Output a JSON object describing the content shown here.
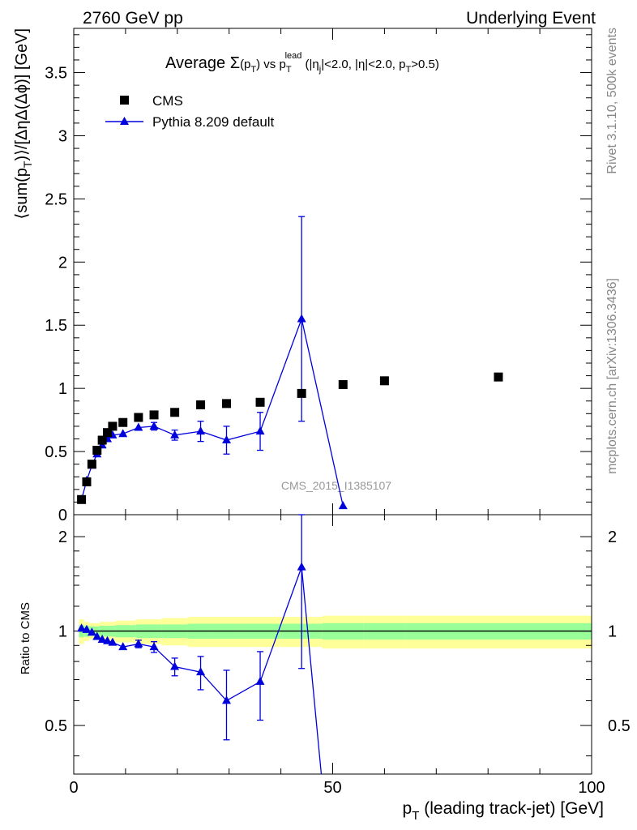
{
  "header": {
    "left": "2760 GeV pp",
    "right": "Underlying Event"
  },
  "side_labels": {
    "rivet": "Rivet 3.1.10,  500k events",
    "mcplots": "mcplots.cern.ch [arXiv:1306.3436]"
  },
  "watermark": "CMS_2015_I1385107",
  "colors": {
    "mc": "#0000dd",
    "data": "#000000",
    "band_inner": "#99ff99",
    "band_outer": "#ffff99"
  },
  "chart_data": [
    {
      "type": "scatter",
      "title_parts": {
        "t1": "Average ",
        "t2": "Σ",
        "t3": "(p",
        "t4": "T",
        "t5": ") vs p",
        "t6": "T",
        "t7": "lead",
        "t8": " (|η",
        "t9": "j",
        "t10": "|<2.0, |η|<2.0, p",
        "t11": "T",
        "t12": ">0.5)"
      },
      "ylabel_parts": {
        "a": "⟨sum(p",
        "b": "T",
        "c": ")⟩/[ΔηΔ(Δϕ)] [GeV]"
      },
      "xlim": [
        0,
        100
      ],
      "ylim": [
        0,
        3.85
      ],
      "yticks": [
        {
          "v": 0,
          "label": "0"
        },
        {
          "v": 0.5,
          "label": "0.5"
        },
        {
          "v": 1,
          "label": "1"
        },
        {
          "v": 1.5,
          "label": "1.5"
        },
        {
          "v": 2,
          "label": "2"
        },
        {
          "v": 2.5,
          "label": "2.5"
        },
        {
          "v": 3,
          "label": "3"
        },
        {
          "v": 3.5,
          "label": "3.5"
        }
      ],
      "legend": {
        "position": "top-left",
        "entries": [
          {
            "label": "CMS",
            "marker": "square"
          },
          {
            "label": "Pythia 8.209 default",
            "marker": "triangle"
          }
        ]
      },
      "series": [
        {
          "name": "CMS",
          "x": [
            1.5,
            2.5,
            3.5,
            4.5,
            5.5,
            6.5,
            7.5,
            9.5,
            12.5,
            15.5,
            19.5,
            24.5,
            29.5,
            36,
            44,
            52,
            60,
            82
          ],
          "y": [
            0.12,
            0.26,
            0.4,
            0.51,
            0.59,
            0.65,
            0.7,
            0.73,
            0.77,
            0.79,
            0.81,
            0.87,
            0.88,
            0.89,
            0.96,
            1.03,
            1.06,
            1.09
          ]
        },
        {
          "name": "Pythia 8.209 default",
          "x": [
            1.5,
            2.5,
            3.5,
            4.5,
            5.5,
            6.5,
            7.5,
            9.5,
            12.5,
            15.5,
            19.5,
            24.5,
            29.5,
            36,
            44,
            52
          ],
          "y": [
            0.12,
            0.27,
            0.39,
            0.48,
            0.55,
            0.6,
            0.63,
            0.64,
            0.69,
            0.7,
            0.63,
            0.66,
            0.59,
            0.66,
            1.55,
            0.07
          ],
          "err": [
            0.005,
            0.005,
            0.01,
            0.01,
            0.01,
            0.01,
            0.015,
            0.02,
            0.02,
            0.03,
            0.04,
            0.08,
            0.11,
            0.15,
            0.81,
            0.0
          ]
        }
      ]
    },
    {
      "type": "scatter",
      "ylabel": "Ratio to CMS",
      "xlabel_parts": {
        "a": "p",
        "b": "T",
        "c": " (leading track-jet) [GeV]"
      },
      "xlim": [
        0,
        100
      ],
      "ylim": [
        0.35,
        2.35
      ],
      "xticks": [
        {
          "v": 0,
          "label": "0"
        },
        {
          "v": 50,
          "label": "50"
        },
        {
          "v": 100,
          "label": "100"
        }
      ],
      "yticks": [
        {
          "v": 0.5,
          "label": "0.5"
        },
        {
          "v": 1,
          "label": "1"
        },
        {
          "v": 2,
          "label": "2"
        }
      ],
      "reference_line": 1,
      "band_edges": [
        1,
        2,
        3,
        5,
        8,
        12,
        17,
        22,
        27,
        32,
        40,
        48,
        56,
        64,
        100
      ],
      "band_inner": [
        0.045,
        0.04,
        0.035,
        0.04,
        0.045,
        0.05,
        0.05,
        0.055,
        0.055,
        0.055,
        0.055,
        0.06,
        0.06,
        0.06
      ],
      "band_outer": [
        0.09,
        0.07,
        0.06,
        0.07,
        0.08,
        0.09,
        0.1,
        0.11,
        0.11,
        0.11,
        0.11,
        0.12,
        0.12,
        0.12
      ],
      "series": [
        {
          "name": "Pythia 8.209 default",
          "x": [
            1.5,
            2.5,
            3.5,
            4.5,
            5.5,
            6.5,
            7.5,
            9.5,
            12.5,
            15.5,
            19.5,
            24.5,
            29.5,
            36,
            44,
            47.8
          ],
          "y": [
            1.02,
            1.01,
            0.99,
            0.96,
            0.94,
            0.93,
            0.92,
            0.89,
            0.91,
            0.89,
            0.77,
            0.74,
            0.6,
            0.69,
            1.6,
            0.35
          ],
          "err": [
            0.005,
            0.005,
            0.01,
            0.01,
            0.01,
            0.01,
            0.015,
            0.015,
            0.025,
            0.035,
            0.05,
            0.09,
            0.15,
            0.17,
            0.84,
            0.0
          ]
        }
      ]
    }
  ]
}
